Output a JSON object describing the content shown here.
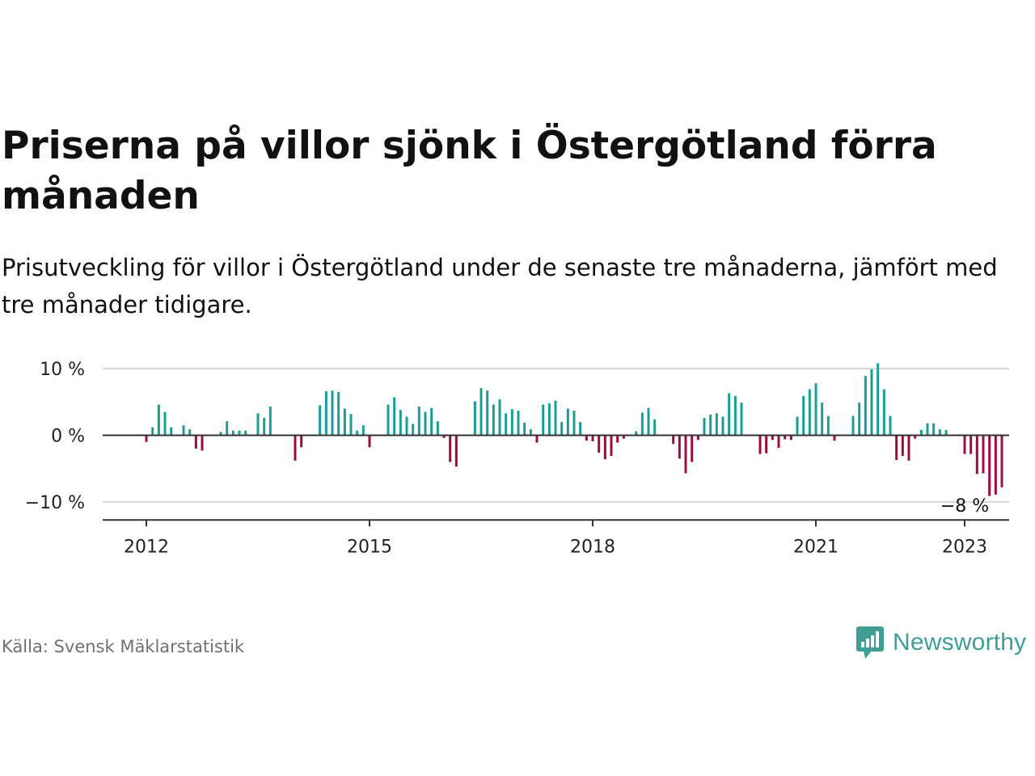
{
  "title": "Priserna på villor sjönk i Östergötland förra månaden",
  "subtitle": "Prisutveckling för villor i Östergötland under de senaste tre månaderna, jämfört med tre månader tidigare.",
  "source": "Källa: Svensk Mäklarstatistik",
  "brand": {
    "name": "Newsworthy",
    "icon": "newsworthy-logo-icon"
  },
  "colors": {
    "positive": "#1a9e96",
    "negative": "#9c0c43",
    "grid": "#d9d9d9",
    "zero": "#333333",
    "brand": "#3f9d93"
  },
  "chart_data": {
    "type": "bar",
    "x_unit": "month",
    "start": "2012-01",
    "end": "2023-01",
    "ylim": [
      -12.5,
      10.5
    ],
    "yticks": [
      10,
      0,
      -10
    ],
    "ytick_labels": [
      "10 %",
      "0 %",
      "−10 %"
    ],
    "xticks": [
      "2012-01",
      "2015-01",
      "2018-01",
      "2021-01",
      "2023-01"
    ],
    "xtick_labels": [
      "2012",
      "2015",
      "2018",
      "2021",
      "2023"
    ],
    "grid": "horizontal",
    "annotation": {
      "x": "2023-01",
      "text": "−8 %"
    },
    "values": [
      -1,
      1.2,
      4.6,
      3.5,
      1.2,
      0,
      1.5,
      0.9,
      -2,
      -2.3,
      0,
      0,
      0.5,
      2.1,
      0.7,
      0.7,
      0.7,
      0,
      3.3,
      2.6,
      4.3,
      0,
      0,
      0,
      -3.8,
      -1.8,
      0,
      0,
      4.5,
      6.6,
      6.7,
      6.5,
      4,
      3.2,
      0.7,
      1.5,
      -1.8,
      0,
      0,
      4.6,
      5.7,
      3.8,
      2.8,
      1.7,
      4.3,
      3.5,
      4.1,
      2.1,
      -0.4,
      -4,
      -4.7,
      0,
      0,
      5.1,
      7.1,
      6.7,
      4.6,
      5.4,
      3.3,
      3.9,
      3.7,
      1.9,
      0.9,
      -1.1,
      4.6,
      4.8,
      5.2,
      2,
      4,
      3.7,
      2,
      -0.8,
      -0.9,
      -2.6,
      -3.6,
      -3.1,
      -1.1,
      -0.5,
      0,
      0.6,
      3.4,
      4.1,
      2.4,
      0,
      0,
      -1.3,
      -3.5,
      -5.7,
      -4,
      -0.7,
      2.6,
      3.1,
      3.3,
      2.8,
      6.3,
      5.9,
      4.9,
      0,
      0,
      -2.8,
      -2.7,
      -0.7,
      -1.9,
      -0.6,
      -0.7,
      2.8,
      5.9,
      6.9,
      7.8,
      4.9,
      2.9,
      -0.8,
      0,
      0,
      2.9,
      4.9,
      8.9,
      9.9,
      10.8,
      6.9,
      2.9,
      -3.7,
      -3.1,
      -3.8,
      -0.5,
      0.8,
      1.8,
      1.8,
      0.9,
      0.8,
      0,
      0,
      -2.8,
      -2.8,
      -5.8,
      -5.7,
      -9.1,
      -8.9,
      -7.8
    ]
  }
}
